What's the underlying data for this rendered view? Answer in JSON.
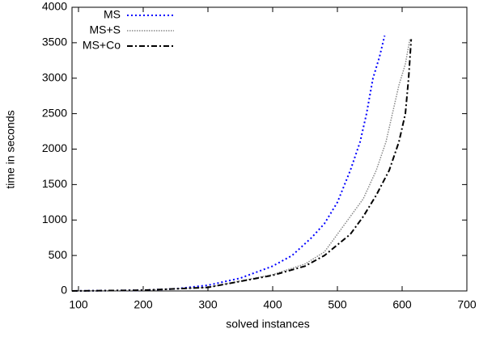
{
  "chart_data": {
    "type": "line",
    "x_label": "solved instances",
    "y_label": "time in seconds",
    "xlim": [
      90,
      700
    ],
    "xticks": [
      100,
      200,
      300,
      400,
      500,
      600,
      700
    ],
    "ylim": [
      0,
      4000
    ],
    "yticks": [
      0,
      500,
      1000,
      1500,
      2000,
      2500,
      3000,
      3500,
      4000
    ],
    "legend": "upper left",
    "grid": false,
    "series": [
      {
        "name": "MS",
        "color": "#0000ff",
        "dash": "2,3",
        "width": 2,
        "x": [
          90,
          200,
          250,
          300,
          350,
          400,
          430,
          460,
          480,
          500,
          520,
          535,
          545,
          555,
          565,
          573
        ],
        "values": [
          0,
          10,
          30,
          80,
          180,
          350,
          500,
          750,
          950,
          1250,
          1700,
          2100,
          2500,
          3000,
          3300,
          3600
        ]
      },
      {
        "name": "MS+S",
        "color": "#888888",
        "dash": "1.5,1.5",
        "width": 1.5,
        "x": [
          90,
          200,
          300,
          400,
          450,
          480,
          500,
          520,
          540,
          560,
          575,
          585,
          595,
          605,
          612
        ],
        "values": [
          0,
          10,
          50,
          230,
          380,
          550,
          800,
          1050,
          1300,
          1700,
          2100,
          2500,
          2900,
          3200,
          3550
        ]
      },
      {
        "name": "MS+Co",
        "color": "#000000",
        "dash": "7,3,2,3",
        "width": 2,
        "x": [
          90,
          200,
          300,
          400,
          450,
          480,
          500,
          520,
          540,
          560,
          580,
          595,
          605,
          610,
          614
        ],
        "values": [
          0,
          10,
          50,
          220,
          350,
          500,
          650,
          800,
          1050,
          1350,
          1700,
          2100,
          2500,
          3000,
          3550
        ]
      }
    ]
  }
}
